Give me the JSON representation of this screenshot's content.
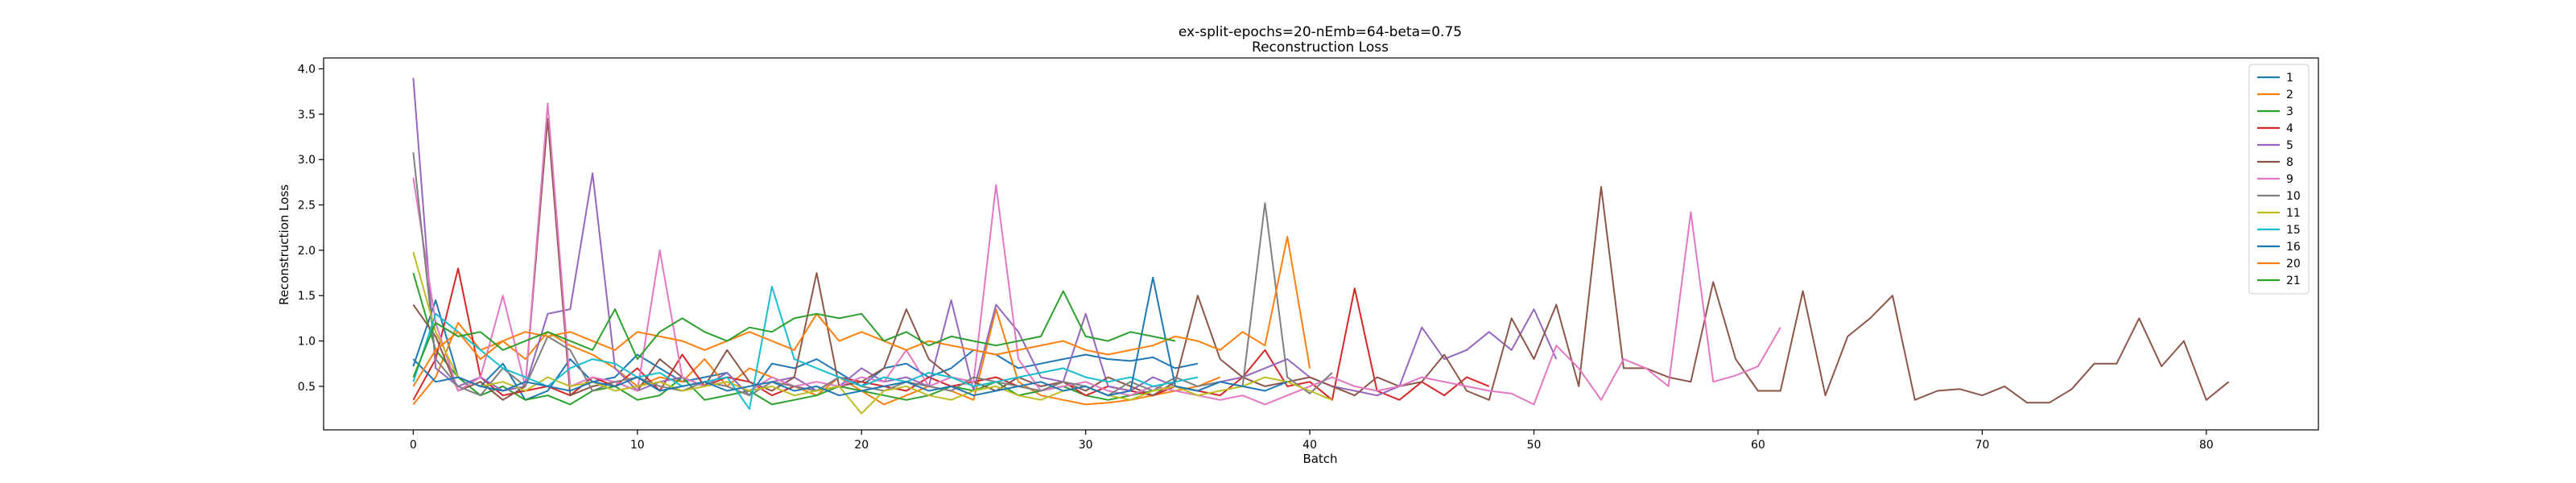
{
  "chart_data": {
    "type": "line",
    "title": "ex-split-epochs=20-nEmb=64-beta=0.75",
    "subtitle": "Reconstruction Loss",
    "xlabel": "Batch",
    "ylabel": "Reconstruction Loss",
    "xlim": [
      -4,
      85
    ],
    "ylim": [
      0.02,
      4.12
    ],
    "xticks": [
      0,
      10,
      20,
      30,
      40,
      50,
      60,
      70,
      80
    ],
    "yticks": [
      0.5,
      1.0,
      1.5,
      2.0,
      2.5,
      3.0,
      3.5,
      4.0
    ],
    "xtick_labels": [
      "0",
      "10",
      "20",
      "30",
      "40",
      "50",
      "60",
      "70",
      "80"
    ],
    "ytick_labels": [
      "0.5",
      "1.0",
      "1.5",
      "2.0",
      "2.5",
      "3.0",
      "3.5",
      "4.0"
    ],
    "grid": false,
    "legend": "top-right",
    "series": [
      {
        "name": "1",
        "color": "#1f77b4",
        "values": [
          0.72,
          1.45,
          0.6,
          0.5,
          0.75,
          0.35,
          0.45,
          0.8,
          0.55,
          0.6,
          0.85,
          0.7,
          0.55,
          0.6,
          0.65,
          0.4,
          0.75,
          0.7,
          0.8,
          0.65,
          0.5,
          0.7,
          0.75,
          0.6,
          0.7,
          0.9,
          0.85,
          0.7,
          0.75,
          0.8,
          0.85,
          0.8,
          0.78,
          0.82,
          0.7,
          0.75
        ]
      },
      {
        "name": "2",
        "color": "#ff7f0e",
        "values": [
          0.3,
          0.6,
          1.2,
          0.9,
          1.0,
          0.8,
          1.1,
          0.95,
          0.85,
          0.7,
          0.5,
          0.6,
          0.55,
          0.8,
          0.5,
          0.7,
          0.6,
          0.5,
          0.4,
          0.6,
          0.45,
          0.3,
          0.4,
          0.5,
          0.45,
          0.35,
          1.35,
          0.55,
          0.4,
          0.35,
          0.3,
          0.32,
          0.35,
          0.4,
          0.45,
          0.5,
          0.6
        ]
      },
      {
        "name": "3",
        "color": "#2ca02c",
        "values": [
          1.75,
          0.9,
          0.6,
          0.4,
          0.5,
          0.35,
          0.4,
          0.3,
          0.45,
          0.5,
          0.35,
          0.4,
          0.6,
          0.35,
          0.4,
          0.45,
          0.3,
          0.35,
          0.4,
          0.5,
          0.45,
          0.4,
          0.35,
          0.4,
          0.5,
          0.45,
          0.55,
          0.4,
          0.45,
          0.5,
          0.4,
          0.35,
          0.4,
          0.45,
          0.5
        ]
      },
      {
        "name": "4",
        "color": "#d62728",
        "values": [
          0.35,
          0.8,
          1.8,
          0.6,
          0.4,
          0.45,
          0.5,
          0.4,
          0.6,
          0.5,
          0.7,
          0.45,
          0.85,
          0.5,
          0.6,
          0.55,
          0.4,
          0.5,
          0.45,
          0.6,
          0.55,
          0.5,
          0.45,
          0.6,
          0.5,
          0.55,
          0.6,
          0.5,
          0.45,
          0.55,
          0.4,
          0.5,
          0.45,
          0.4,
          0.5,
          0.45,
          0.4,
          0.6,
          0.9,
          0.5,
          0.55,
          0.35,
          1.58,
          0.45,
          0.35,
          0.55,
          0.4,
          0.6,
          0.5
        ]
      },
      {
        "name": "5",
        "color": "#9467bd",
        "values": [
          3.9,
          0.7,
          0.5,
          0.6,
          0.45,
          0.5,
          1.3,
          1.35,
          2.85,
          0.7,
          0.45,
          0.55,
          0.6,
          0.5,
          0.65,
          0.4,
          0.55,
          0.6,
          0.45,
          0.5,
          0.7,
          0.55,
          0.6,
          0.5,
          1.45,
          0.45,
          1.4,
          1.1,
          0.6,
          0.55,
          1.3,
          0.5,
          0.45,
          0.6,
          0.5,
          0.45,
          0.55,
          0.6,
          0.7,
          0.8,
          0.6,
          0.5,
          0.45,
          0.4,
          0.5,
          1.15,
          0.8,
          0.9,
          1.1,
          0.9,
          1.35,
          0.8
        ]
      },
      {
        "name": "8",
        "color": "#8c564b",
        "values": [
          1.4,
          1.05,
          0.45,
          0.55,
          0.35,
          0.5,
          3.45,
          0.4,
          0.5,
          0.55,
          0.45,
          0.8,
          0.6,
          0.5,
          0.9,
          0.55,
          0.45,
          0.6,
          1.75,
          0.5,
          0.55,
          0.7,
          1.35,
          0.8,
          0.6,
          0.55,
          0.45,
          0.6,
          0.5,
          0.55,
          0.45,
          0.6,
          0.5,
          0.4,
          0.55,
          1.5,
          0.8,
          0.6,
          0.5,
          0.55,
          0.6,
          0.5,
          0.4,
          0.6,
          0.5,
          0.55,
          0.85,
          0.45,
          0.35,
          1.25,
          0.8,
          1.4,
          0.5,
          2.7,
          0.7,
          0.7,
          0.6,
          0.55,
          1.65,
          0.8,
          0.45,
          0.45,
          1.55,
          0.4,
          1.05,
          1.25,
          1.5,
          0.35,
          0.45,
          0.47,
          0.4,
          0.5,
          0.32,
          0.32,
          0.47,
          0.75,
          0.75,
          1.25,
          0.72,
          1.0,
          0.35,
          0.55
        ]
      },
      {
        "name": "9",
        "color": "#e377c2",
        "values": [
          2.8,
          1.2,
          0.45,
          0.6,
          1.5,
          0.5,
          3.62,
          0.5,
          0.6,
          0.55,
          0.45,
          2.0,
          0.6,
          0.5,
          0.55,
          0.45,
          0.6,
          0.5,
          0.55,
          0.5,
          0.6,
          0.55,
          0.9,
          0.5,
          0.6,
          0.55,
          2.72,
          0.8,
          0.45,
          0.5,
          0.55,
          0.45,
          0.4,
          0.5,
          0.45,
          0.4,
          0.35,
          0.4,
          0.3,
          0.4,
          0.5,
          0.6,
          0.5,
          0.45,
          0.5,
          0.6,
          0.55,
          0.5,
          0.45,
          0.42,
          0.3,
          0.95,
          0.7,
          0.35,
          0.8,
          0.7,
          0.5,
          2.42,
          0.55,
          0.62,
          0.72,
          1.15
        ]
      },
      {
        "name": "10",
        "color": "#7f7f7f",
        "values": [
          3.08,
          0.8,
          0.5,
          0.4,
          0.7,
          0.5,
          1.05,
          0.9,
          0.45,
          0.55,
          0.6,
          0.5,
          0.45,
          0.55,
          0.5,
          0.4,
          0.55,
          0.5,
          0.45,
          0.6,
          0.5,
          0.45,
          0.55,
          0.5,
          0.45,
          0.6,
          0.55,
          0.5,
          0.45,
          0.55,
          0.5,
          0.4,
          0.55,
          0.45,
          0.6,
          0.5,
          0.55,
          0.5,
          2.52,
          0.6,
          0.42,
          0.65
        ]
      },
      {
        "name": "11",
        "color": "#bcbd22",
        "values": [
          1.98,
          1.1,
          0.6,
          0.5,
          0.55,
          0.45,
          0.6,
          0.5,
          0.55,
          0.45,
          0.5,
          0.55,
          0.45,
          0.5,
          0.55,
          0.45,
          0.5,
          0.4,
          0.45,
          0.5,
          0.2,
          0.45,
          0.5,
          0.4,
          0.35,
          0.45,
          0.5,
          0.4,
          0.35,
          0.45,
          0.5,
          0.4,
          0.35,
          0.45,
          0.5,
          0.4,
          0.45,
          0.5,
          0.6,
          0.55,
          0.45,
          0.35
        ]
      },
      {
        "name": "15",
        "color": "#17becf",
        "values": [
          0.55,
          1.3,
          1.1,
          0.9,
          0.7,
          0.6,
          0.5,
          0.7,
          0.8,
          0.75,
          0.6,
          0.65,
          0.5,
          0.55,
          0.6,
          0.25,
          1.6,
          0.8,
          0.7,
          0.6,
          0.5,
          0.6,
          0.55,
          0.65,
          0.6,
          0.5,
          0.55,
          0.6,
          0.65,
          0.7,
          0.6,
          0.55,
          0.6,
          0.5,
          0.55,
          0.6
        ]
      },
      {
        "name": "16",
        "color": "#1f77b4",
        "values": [
          0.8,
          0.55,
          0.6,
          0.5,
          0.45,
          0.55,
          0.5,
          0.45,
          0.55,
          0.5,
          0.6,
          0.45,
          0.5,
          0.55,
          0.45,
          0.5,
          0.55,
          0.45,
          0.5,
          0.4,
          0.45,
          0.5,
          0.55,
          0.45,
          0.5,
          0.4,
          0.45,
          0.5,
          0.55,
          0.45,
          0.5,
          0.4,
          0.45,
          1.7,
          0.5,
          0.45,
          0.55,
          0.5,
          0.45,
          0.55
        ]
      },
      {
        "name": "20",
        "color": "#ff7f0e",
        "values": [
          0.5,
          0.9,
          1.1,
          0.8,
          1.0,
          1.1,
          1.05,
          1.1,
          1.0,
          0.9,
          1.1,
          1.05,
          1.0,
          0.9,
          1.0,
          1.1,
          1.0,
          0.9,
          1.3,
          1.0,
          1.1,
          1.0,
          0.9,
          1.0,
          0.95,
          0.9,
          0.85,
          0.9,
          0.95,
          1.0,
          0.9,
          0.85,
          0.9,
          0.95,
          1.05,
          1.0,
          0.9,
          1.1,
          0.95,
          2.15,
          0.7
        ]
      },
      {
        "name": "21",
        "color": "#2ca02c",
        "values": [
          0.6,
          1.2,
          1.05,
          1.1,
          0.9,
          1.0,
          1.1,
          1.0,
          0.9,
          1.35,
          0.8,
          1.1,
          1.25,
          1.1,
          1.0,
          1.15,
          1.1,
          1.25,
          1.3,
          1.25,
          1.3,
          1.0,
          1.1,
          0.95,
          1.05,
          1.0,
          0.95,
          1.0,
          1.05,
          1.55,
          1.05,
          1.0,
          1.1,
          1.05,
          1.0
        ]
      }
    ]
  }
}
